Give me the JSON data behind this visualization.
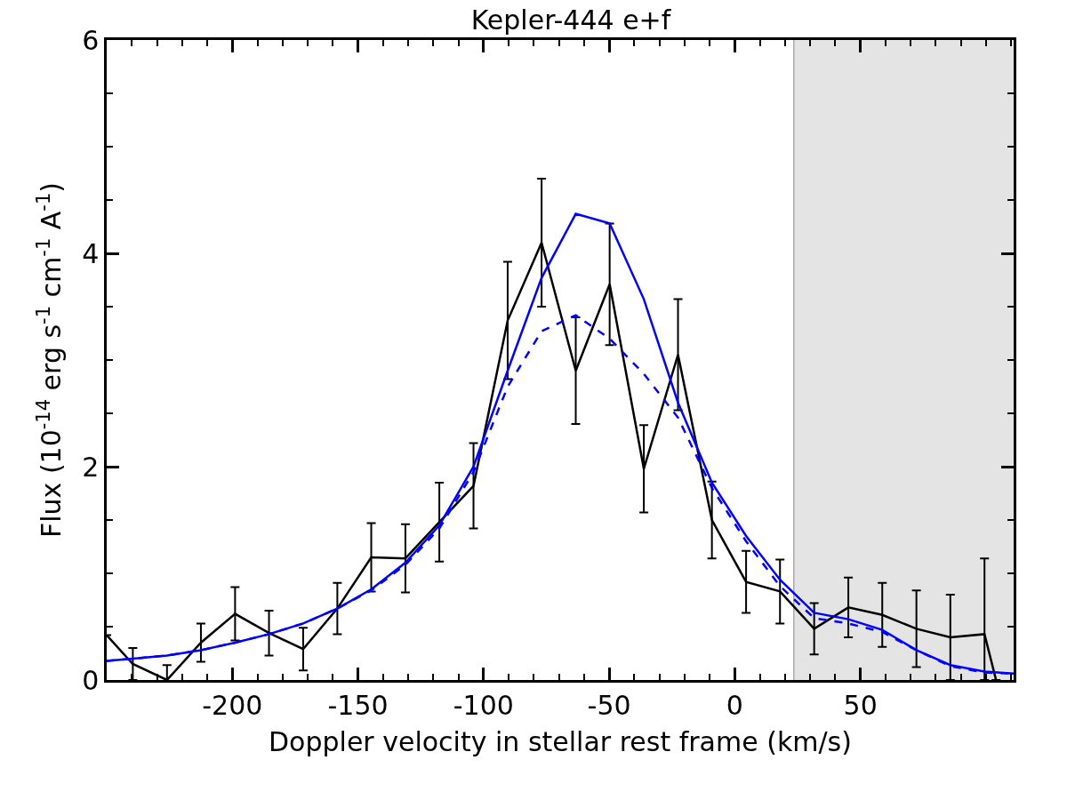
{
  "chart_data": {
    "type": "line",
    "title": "Kepler-444 e+f",
    "xlabel": "Doppler velocity in stellar rest frame (km/s)",
    "ylabel": "Flux (10$^{-14}$ erg s$^{-1}$ cm$^{-1}$ A$^{-1}$)",
    "xlim": [
      -250,
      111
    ],
    "ylim": [
      0,
      6
    ],
    "xticks": [
      -200,
      -150,
      -100,
      -50,
      0,
      50
    ],
    "yticks": [
      0,
      2,
      4,
      6
    ],
    "grid": false,
    "marker": "none",
    "series": [
      {
        "color": "#000000",
        "line_style": "solid",
        "x": [
          -250,
          -239.6,
          -226.0,
          -212.5,
          -198.9,
          -185.4,
          -171.8,
          -158.2,
          -144.7,
          -131.1,
          -117.6,
          -104.0,
          -90.4,
          -76.9,
          -63.3,
          -49.8,
          -36.2,
          -22.6,
          -9.1,
          4.5,
          18.0,
          31.6,
          45.2,
          58.7,
          72.3,
          85.8,
          99.4,
          104.0
        ],
        "values": [
          0.42,
          0.15,
          0.0,
          0.35,
          0.62,
          0.44,
          0.29,
          0.67,
          1.15,
          1.14,
          1.48,
          1.82,
          3.37,
          4.1,
          2.9,
          3.71,
          1.98,
          3.05,
          1.5,
          0.92,
          0.83,
          0.48,
          0.68,
          0.61,
          0.48,
          0.4,
          0.43,
          0.0
        ],
        "errors": [
          null,
          0.15,
          0.14,
          0.18,
          0.25,
          0.21,
          0.2,
          0.24,
          0.32,
          0.32,
          0.37,
          0.4,
          0.55,
          0.6,
          0.5,
          0.57,
          0.41,
          0.52,
          0.36,
          0.29,
          0.3,
          0.24,
          0.28,
          0.3,
          0.36,
          0.4,
          [
            0.0,
            1.14
          ],
          null
        ]
      },
      {
        "color": "#0000ff",
        "line_style": "solid",
        "x": [
          -250,
          -239.6,
          -226.0,
          -212.5,
          -198.9,
          -185.4,
          -171.8,
          -158.2,
          -144.7,
          -131.1,
          -117.6,
          -104.0,
          -90.4,
          -76.9,
          -63.3,
          -49.8,
          -36.2,
          -22.6,
          -9.1,
          4.5,
          18.0,
          31.6,
          45.2,
          58.7,
          72.3,
          85.8,
          99.4,
          111
        ],
        "values": [
          0.18,
          0.2,
          0.23,
          0.28,
          0.35,
          0.43,
          0.53,
          0.67,
          0.85,
          1.1,
          1.45,
          2.0,
          2.9,
          3.77,
          4.37,
          4.28,
          3.57,
          2.6,
          1.85,
          1.35,
          0.94,
          0.63,
          0.57,
          0.47,
          0.28,
          0.14,
          0.08,
          0.06
        ]
      },
      {
        "color": "#0000ff",
        "line_style": "dashed",
        "x": [
          -250,
          -239.6,
          -226.0,
          -212.5,
          -198.9,
          -185.4,
          -171.8,
          -158.2,
          -144.7,
          -131.1,
          -117.6,
          -104.0,
          -90.4,
          -76.9,
          -63.3,
          -49.8,
          -36.2,
          -22.6,
          -9.1,
          4.5,
          18.0,
          31.6,
          45.2,
          58.7,
          72.3,
          85.8,
          99.4,
          111
        ],
        "values": [
          0.18,
          0.2,
          0.23,
          0.28,
          0.35,
          0.43,
          0.53,
          0.67,
          0.84,
          1.08,
          1.42,
          1.95,
          2.75,
          3.27,
          3.42,
          3.2,
          2.87,
          2.46,
          1.8,
          1.3,
          0.88,
          0.58,
          0.53,
          0.45,
          0.28,
          0.13,
          0.07,
          0.06
        ]
      }
    ],
    "bands": [
      {
        "axis": "x",
        "from": 23.5,
        "to": 111,
        "color": "#e4e4e4"
      }
    ],
    "ref_lines": [
      {
        "axis": "x",
        "value": 23.5,
        "color": "#999999",
        "line_style": "solid"
      }
    ]
  }
}
